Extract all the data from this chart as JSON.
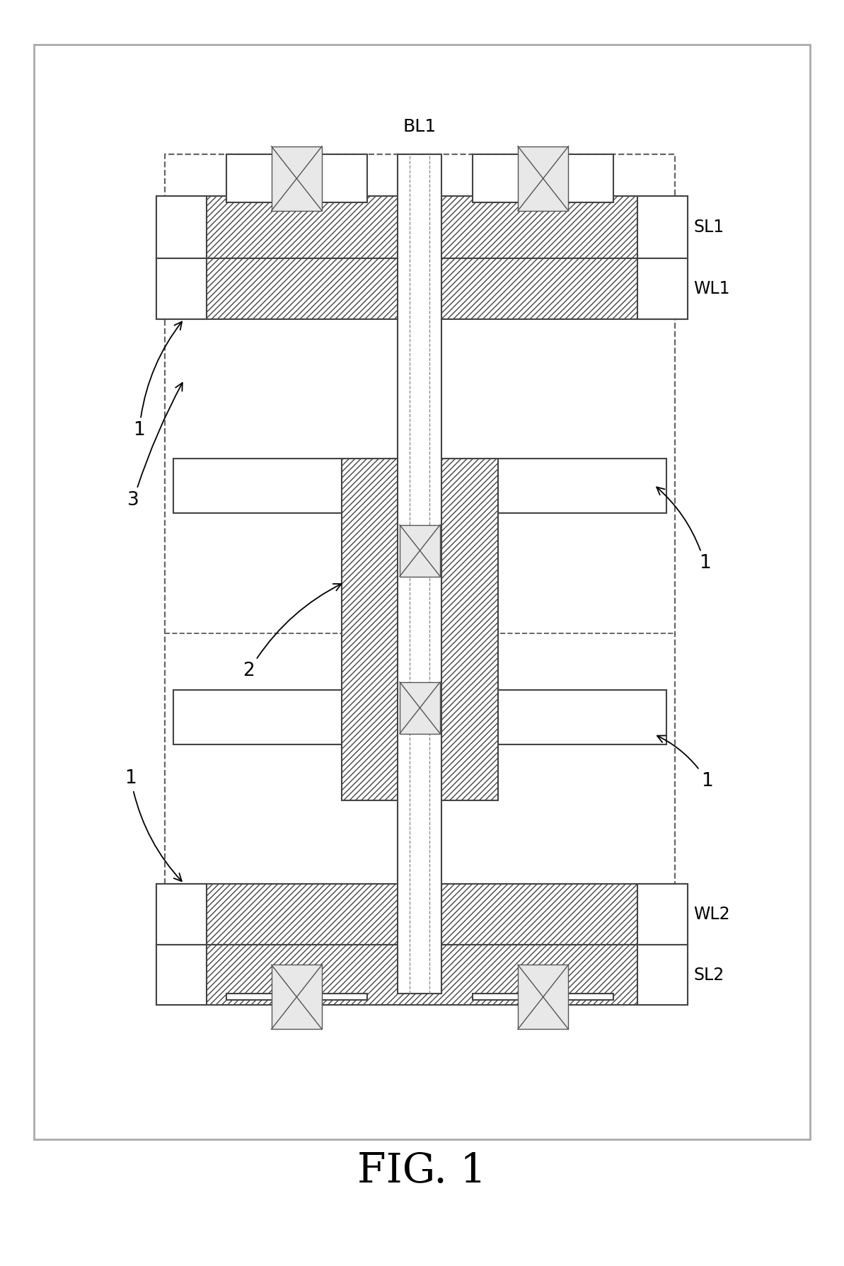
{
  "fig_width": 11.93,
  "fig_height": 17.89,
  "title": "FIG. 1",
  "BL1_label": "BL1",
  "SL1_label": "SL1",
  "WL1_label": "WL1",
  "WL2_label": "WL2",
  "SL2_label": "SL2",
  "ec_main": "#444444",
  "ec_dashed": "#666666",
  "hatch_pattern": "////",
  "bg": "#ffffff"
}
